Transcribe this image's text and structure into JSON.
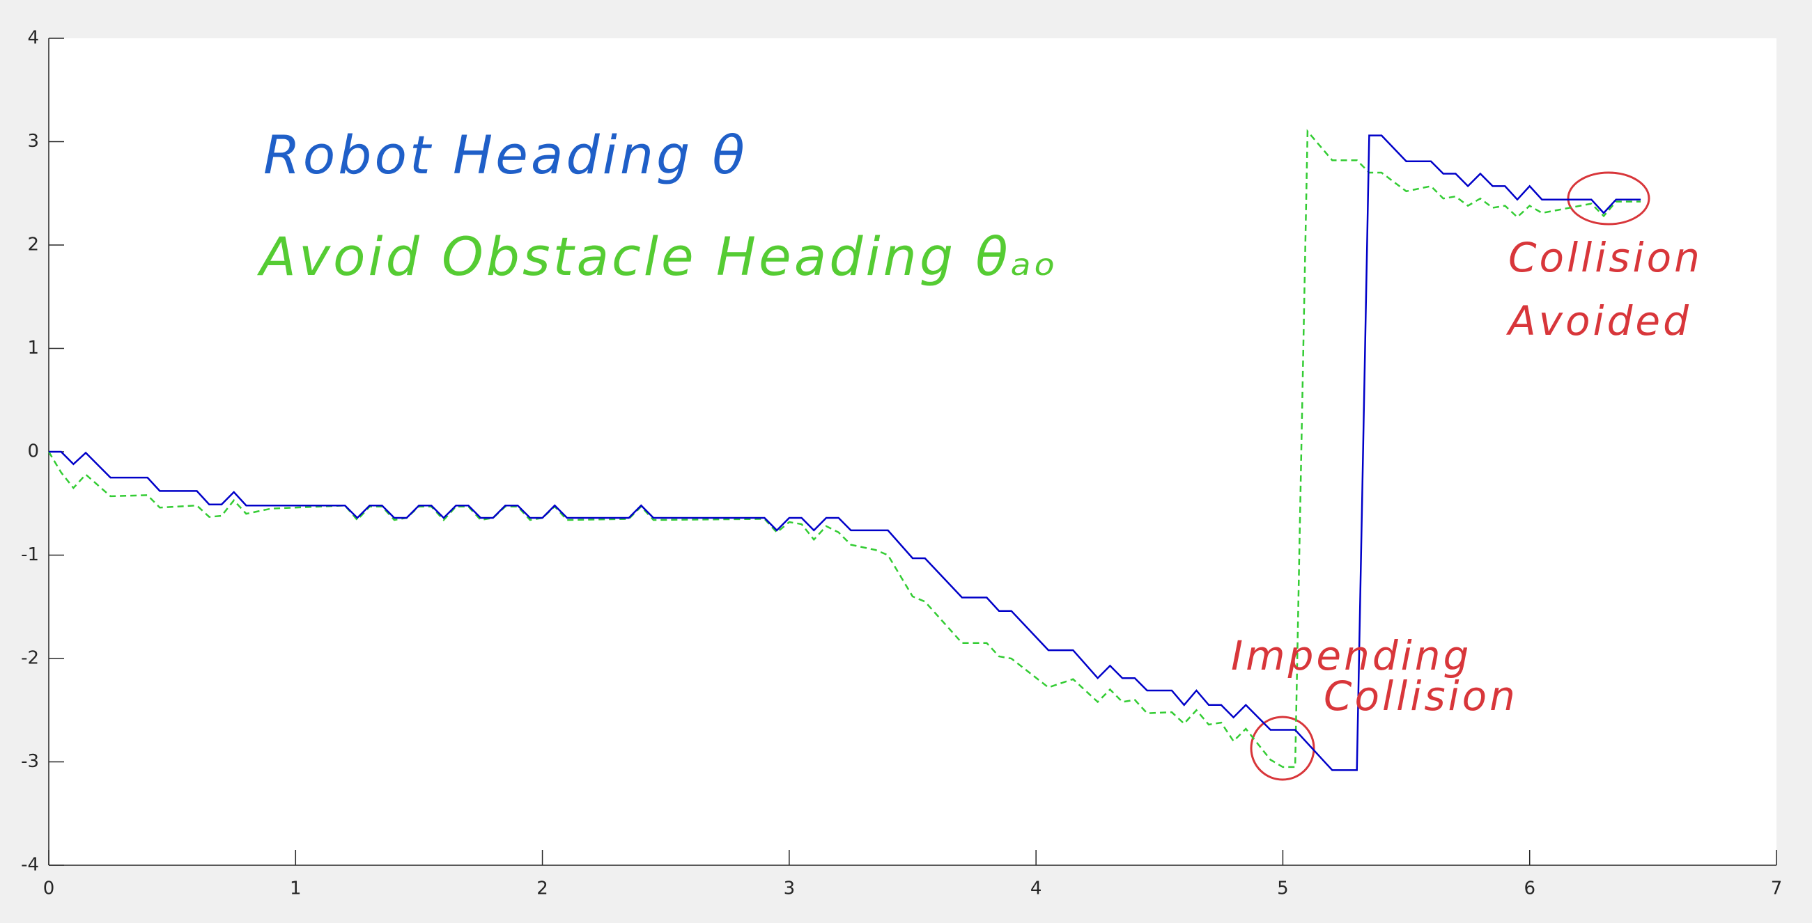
{
  "chart_data": {
    "type": "line",
    "series": [
      {
        "name": "Robot Heading",
        "color": "#0000c8",
        "dash": false,
        "x": [
          0,
          0.05,
          0.1,
          0.15,
          0.25,
          0.4,
          0.45,
          0.6,
          0.65,
          0.7,
          0.75,
          0.8,
          1.2,
          1.25,
          1.3,
          1.35,
          1.4,
          1.45,
          1.5,
          1.55,
          1.6,
          1.65,
          1.7,
          1.75,
          1.8,
          1.85,
          1.9,
          1.95,
          2,
          2.05,
          2.1,
          2.35,
          2.4,
          2.45,
          2.9,
          2.95,
          3,
          3.05,
          3.1,
          3.15,
          3.2,
          3.25,
          3.4,
          3.5,
          3.55,
          3.7,
          3.8,
          3.85,
          3.9,
          4.05,
          4.15,
          4.25,
          4.3,
          4.35,
          4.4,
          4.45,
          4.55,
          4.6,
          4.65,
          4.7,
          4.75,
          4.8,
          4.85,
          4.95,
          5.05,
          5.2,
          5.3,
          5.35,
          5.4,
          5.5,
          5.6,
          5.65,
          5.7,
          5.75,
          5.8,
          5.85,
          5.9,
          5.95,
          6,
          6.05,
          6.25,
          6.3,
          6.35,
          6.45
        ],
        "values": [
          0,
          0,
          -0.12,
          -0.01,
          -0.25,
          -0.25,
          -0.38,
          -0.38,
          -0.51,
          -0.51,
          -0.39,
          -0.52,
          -0.52,
          -0.64,
          -0.52,
          -0.52,
          -0.64,
          -0.64,
          -0.52,
          -0.52,
          -0.64,
          -0.52,
          -0.52,
          -0.64,
          -0.64,
          -0.52,
          -0.52,
          -0.64,
          -0.64,
          -0.52,
          -0.64,
          -0.64,
          -0.52,
          -0.64,
          -0.64,
          -0.76,
          -0.64,
          -0.64,
          -0.76,
          -0.64,
          -0.64,
          -0.76,
          -0.76,
          -1.03,
          -1.03,
          -1.41,
          -1.41,
          -1.54,
          -1.54,
          -1.92,
          -1.92,
          -2.19,
          -2.07,
          -2.19,
          -2.19,
          -2.31,
          -2.31,
          -2.45,
          -2.31,
          -2.45,
          -2.45,
          -2.57,
          -2.45,
          -2.69,
          -2.69,
          -3.08,
          -3.08,
          3.06,
          3.06,
          2.81,
          2.81,
          2.69,
          2.69,
          2.57,
          2.69,
          2.57,
          2.57,
          2.44,
          2.57,
          2.44,
          2.44,
          2.31,
          2.44,
          2.44
        ]
      },
      {
        "name": "Avoid Obstacle Heading",
        "color": "#33cc33",
        "dash": true,
        "x": [
          0,
          0.05,
          0.1,
          0.15,
          0.25,
          0.4,
          0.45,
          0.6,
          0.65,
          0.7,
          0.75,
          0.8,
          0.9,
          1.2,
          1.25,
          1.3,
          1.35,
          1.4,
          1.45,
          1.5,
          1.55,
          1.6,
          1.65,
          1.7,
          1.75,
          1.8,
          1.85,
          1.9,
          1.95,
          2,
          2.05,
          2.1,
          2.35,
          2.4,
          2.45,
          2.9,
          2.95,
          3,
          3.05,
          3.1,
          3.15,
          3.2,
          3.25,
          3.35,
          3.4,
          3.5,
          3.55,
          3.7,
          3.8,
          3.85,
          3.9,
          4.05,
          4.15,
          4.25,
          4.3,
          4.35,
          4.4,
          4.45,
          4.55,
          4.6,
          4.65,
          4.7,
          4.75,
          4.8,
          4.85,
          4.95,
          5,
          5.05,
          5.1,
          5.2,
          5.3,
          5.35,
          5.4,
          5.5,
          5.6,
          5.65,
          5.7,
          5.75,
          5.8,
          5.85,
          5.9,
          5.95,
          6,
          6.05,
          6.25,
          6.3,
          6.35,
          6.45
        ],
        "values": [
          0,
          -0.2,
          -0.35,
          -0.22,
          -0.43,
          -0.42,
          -0.54,
          -0.52,
          -0.63,
          -0.62,
          -0.47,
          -0.6,
          -0.55,
          -0.52,
          -0.66,
          -0.53,
          -0.53,
          -0.66,
          -0.64,
          -0.53,
          -0.53,
          -0.66,
          -0.53,
          -0.53,
          -0.66,
          -0.64,
          -0.53,
          -0.53,
          -0.66,
          -0.64,
          -0.53,
          -0.66,
          -0.65,
          -0.53,
          -0.66,
          -0.65,
          -0.78,
          -0.68,
          -0.7,
          -0.85,
          -0.72,
          -0.78,
          -0.9,
          -0.95,
          -1.0,
          -1.4,
          -1.45,
          -1.85,
          -1.85,
          -1.98,
          -2.0,
          -2.28,
          -2.2,
          -2.42,
          -2.3,
          -2.42,
          -2.4,
          -2.53,
          -2.52,
          -2.63,
          -2.5,
          -2.64,
          -2.62,
          -2.8,
          -2.68,
          -2.98,
          -3.05,
          -3.05,
          3.1,
          2.82,
          2.82,
          2.7,
          2.7,
          2.52,
          2.57,
          2.45,
          2.47,
          2.38,
          2.45,
          2.36,
          2.38,
          2.27,
          2.38,
          2.31,
          2.4,
          2.28,
          2.42,
          2.42
        ]
      }
    ],
    "xlim": [
      0,
      7
    ],
    "xticks": [
      0,
      1,
      2,
      3,
      4,
      5,
      6,
      7
    ],
    "ylim": [
      -4,
      4
    ],
    "yticks": [
      -4,
      -3,
      -2,
      -1,
      0,
      1,
      2,
      3,
      4
    ],
    "annotations": [
      {
        "text": "Robot Heading θ",
        "color": "#1f5fc8"
      },
      {
        "text": "Avoid Obstacle Heading θₐₒ",
        "color": "#55cc33"
      },
      {
        "text": "Impending",
        "color": "#d8363a"
      },
      {
        "text": "Collision",
        "color": "#d8363a"
      },
      {
        "text": "Collision",
        "color": "#d8363a"
      },
      {
        "text": "Avoided",
        "color": "#d8363a"
      }
    ]
  }
}
